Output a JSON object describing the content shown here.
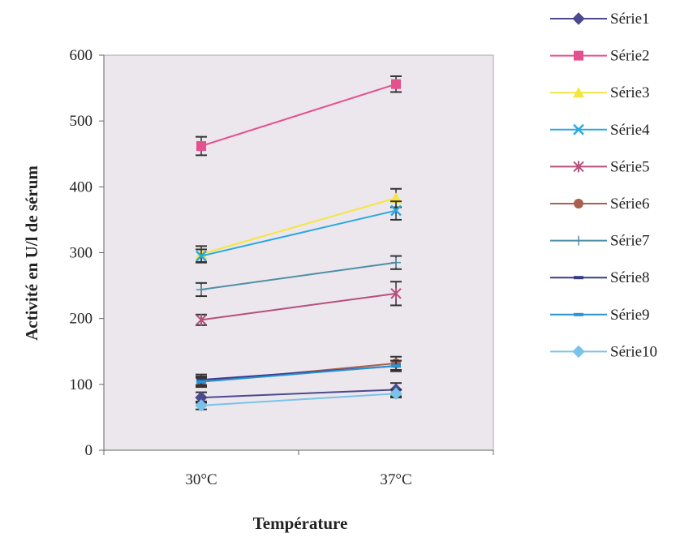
{
  "chart_data": {
    "type": "line",
    "title": "",
    "xlabel": "Température",
    "ylabel": "Activité en U/l de sérum",
    "categories": [
      "30°C",
      "37°C"
    ],
    "ylim": [
      0,
      600
    ],
    "yticks": [
      0,
      100,
      200,
      300,
      400,
      500,
      600
    ],
    "grid": false,
    "legend_position": "right",
    "plot_background": "#ece6ed",
    "series": [
      {
        "name": "Série1",
        "values": [
          80,
          92
        ],
        "errors": [
          8,
          10
        ],
        "color": "#4b4a8f",
        "marker": "diamond"
      },
      {
        "name": "Série2",
        "values": [
          462,
          556
        ],
        "errors": [
          14,
          12
        ],
        "color": "#e5508e",
        "marker": "square"
      },
      {
        "name": "Série3",
        "values": [
          298,
          383
        ],
        "errors": [
          12,
          14
        ],
        "color": "#f4e63c",
        "marker": "triangle"
      },
      {
        "name": "Série4",
        "values": [
          295,
          364
        ],
        "errors": [
          10,
          14
        ],
        "color": "#29a9e0",
        "marker": "x"
      },
      {
        "name": "Série5",
        "values": [
          198,
          238
        ],
        "errors": [
          8,
          18
        ],
        "color": "#b5517b",
        "marker": "star"
      },
      {
        "name": "Série6",
        "values": [
          104,
          132
        ],
        "errors": [
          8,
          10
        ],
        "color": "#a9604f",
        "marker": "circle"
      },
      {
        "name": "Série7",
        "values": [
          244,
          285
        ],
        "errors": [
          10,
          10
        ],
        "color": "#4f8fa5",
        "marker": "plus"
      },
      {
        "name": "Série8",
        "values": [
          107,
          128
        ],
        "errors": [
          8,
          8
        ],
        "color": "#3b3a8c",
        "marker": "dash"
      },
      {
        "name": "Série9",
        "values": [
          104,
          128
        ],
        "errors": [
          6,
          8
        ],
        "color": "#2795d4",
        "marker": "dash"
      },
      {
        "name": "Série10",
        "values": [
          68,
          86
        ],
        "errors": [
          6,
          6
        ],
        "color": "#79c3ea",
        "marker": "diamond"
      }
    ]
  }
}
